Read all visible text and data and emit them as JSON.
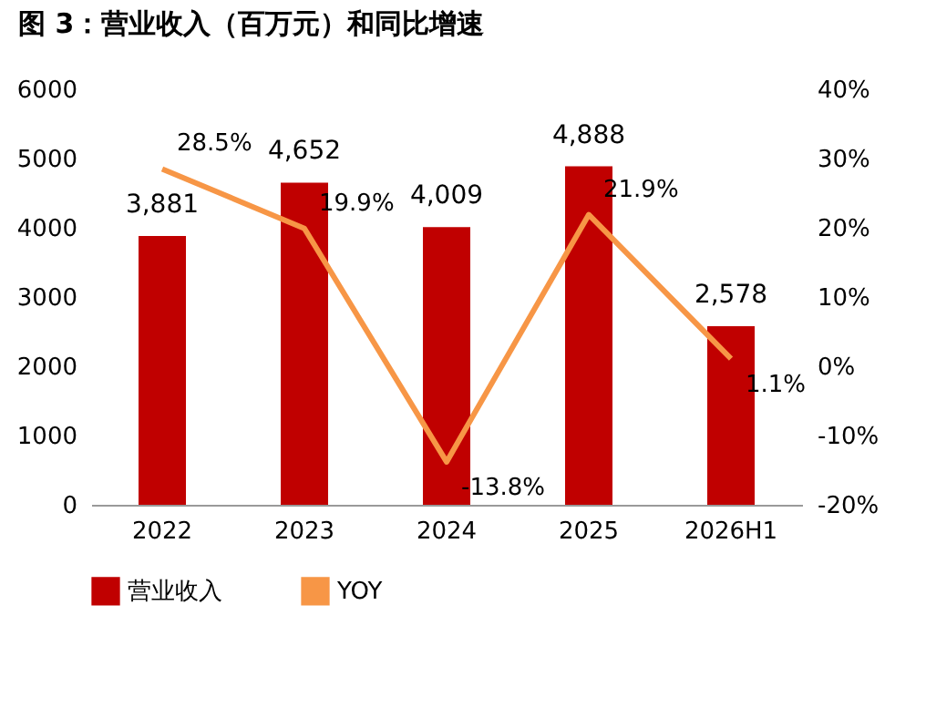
{
  "chart_data": {
    "type": "bar",
    "title": "图 3：营业收入（百万元）和同比增速",
    "categories": [
      "2022",
      "2023",
      "2024",
      "2025",
      "2026H1"
    ],
    "series": [
      {
        "name": "营业收入",
        "color": "#c00000",
        "values": [
          3881,
          4652,
          4009,
          4888,
          2578
        ],
        "value_labels": [
          "3,881",
          "4,652",
          "4,009",
          "4,888",
          "2,578"
        ]
      },
      {
        "name": "YOY",
        "type": "line",
        "axis": "y2",
        "color": "#f79646",
        "values": [
          28.5,
          19.9,
          -13.8,
          21.9,
          1.1
        ],
        "value_labels": [
          "28.5%",
          "19.9%",
          "-13.8%",
          "21.9%",
          "1.1%"
        ]
      }
    ],
    "ylim": [
      0,
      6000
    ],
    "yticks": [
      0,
      1000,
      2000,
      3000,
      4000,
      5000,
      6000
    ],
    "y2lim": [
      -20,
      40
    ],
    "y2ticks": [
      {
        "value": -20,
        "label": "-20%"
      },
      {
        "value": -10,
        "label": "-10%"
      },
      {
        "value": 0,
        "label": "0%"
      },
      {
        "value": 10,
        "label": "10%"
      },
      {
        "value": 20,
        "label": "20%"
      },
      {
        "value": 30,
        "label": "30%"
      },
      {
        "value": 40,
        "label": "40%"
      }
    ],
    "legend": "bottom",
    "marker": "none",
    "line_style": "solid",
    "grid": false
  }
}
